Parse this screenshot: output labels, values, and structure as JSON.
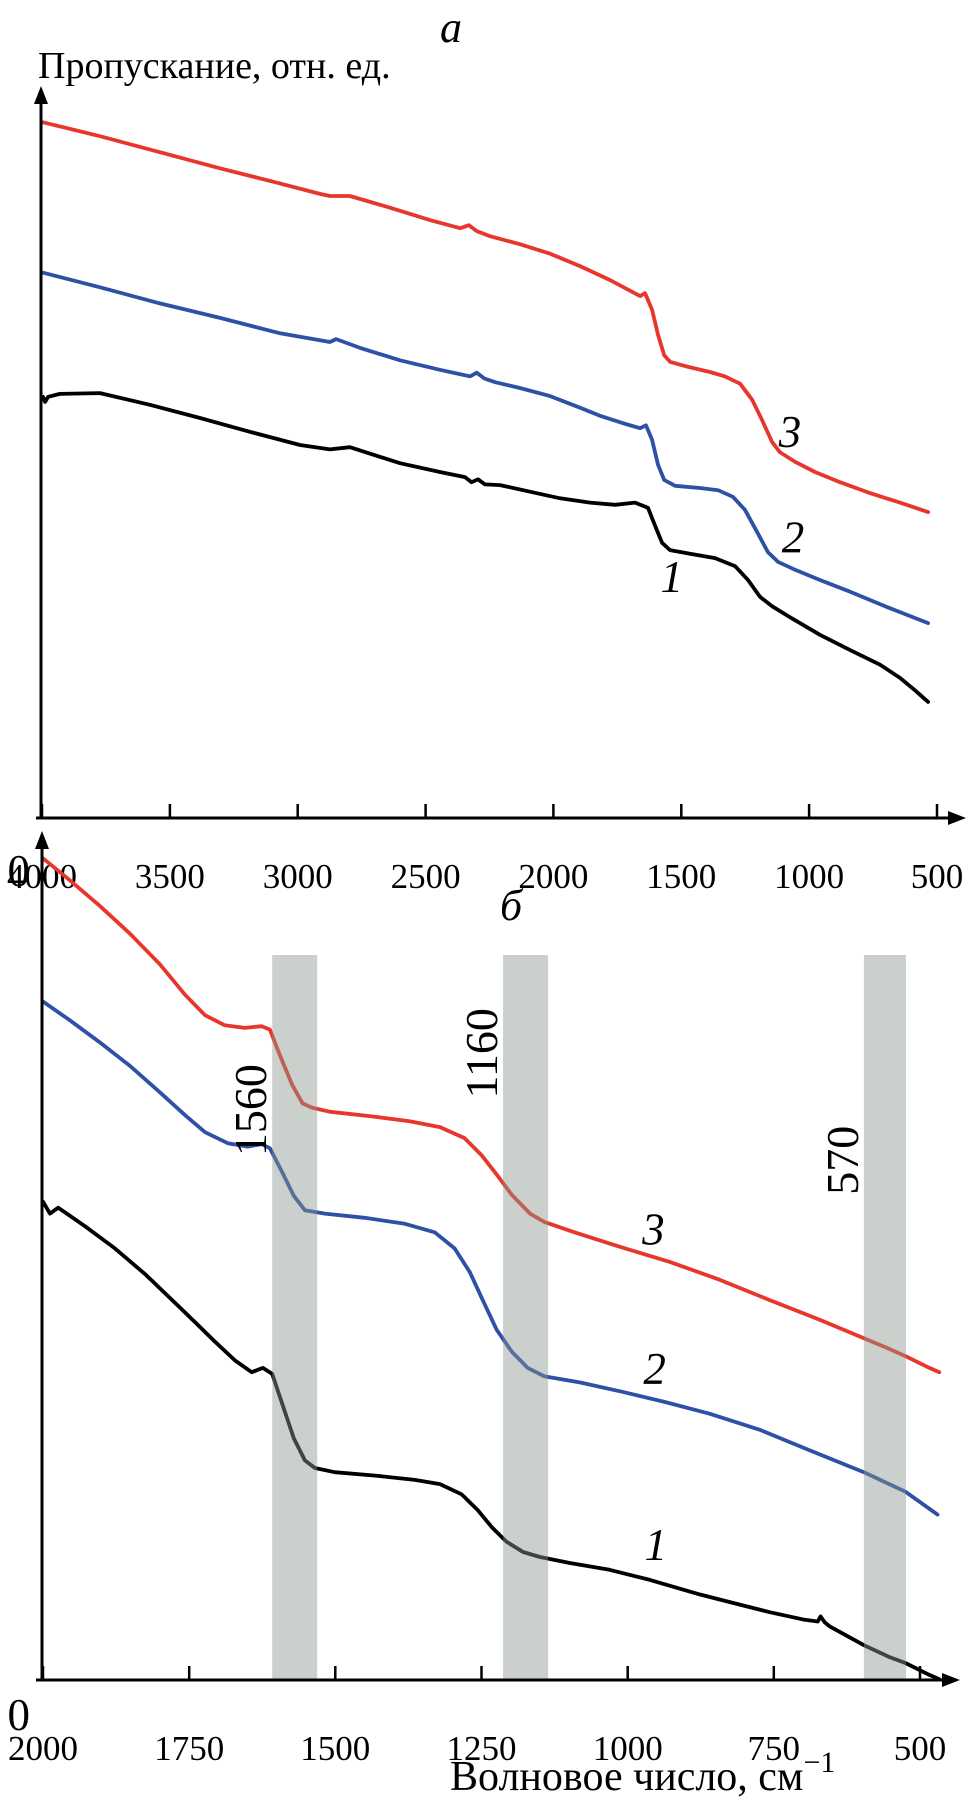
{
  "figure": {
    "panel_a_label": "a",
    "panel_b_label": "б",
    "y_axis_title": "Пропускание, отн. ед.",
    "x_axis_title": "Волновое число, см",
    "x_axis_title_superscript": "−1",
    "colors": {
      "curve1": "#000000",
      "curve2": "#2d51a4",
      "curve3": "#e7372c",
      "band": "#8c968e",
      "band_opacity": 0.45,
      "axis": "#000000"
    }
  },
  "chart_data": [
    {
      "panel": "a",
      "type": "line",
      "title": "a",
      "xlabel": "Волновое число, см⁻¹",
      "ylabel": "Пропускание, отн. ед.",
      "x_axis_reversed": true,
      "x_ticks": [
        4000,
        3500,
        3000,
        2500,
        2000,
        1500,
        1000,
        500
      ],
      "y_origin_label": "0",
      "grid": false,
      "legend": "curve numbers printed next to curves",
      "series": [
        {
          "name": "1",
          "color": "#000000",
          "label": {
            "text": "1",
            "x": 1537,
            "v": 0.33
          },
          "points": [
            [
              3996,
              0.577
            ],
            [
              3988,
              0.57
            ],
            [
              3976,
              0.577
            ],
            [
              3930,
              0.581
            ],
            [
              3773,
              0.582
            ],
            [
              3578,
              0.566
            ],
            [
              3382,
              0.548
            ],
            [
              3187,
              0.529
            ],
            [
              2991,
              0.511
            ],
            [
              2874,
              0.505
            ],
            [
              2796,
              0.508
            ],
            [
              2600,
              0.486
            ],
            [
              2444,
              0.474
            ],
            [
              2346,
              0.467
            ],
            [
              2320,
              0.46
            ],
            [
              2295,
              0.464
            ],
            [
              2268,
              0.457
            ],
            [
              2209,
              0.456
            ],
            [
              2092,
              0.447
            ],
            [
              1974,
              0.438
            ],
            [
              1857,
              0.432
            ],
            [
              1759,
              0.429
            ],
            [
              1681,
              0.432
            ],
            [
              1630,
              0.425
            ],
            [
              1603,
              0.401
            ],
            [
              1575,
              0.377
            ],
            [
              1544,
              0.367
            ],
            [
              1466,
              0.362
            ],
            [
              1368,
              0.356
            ],
            [
              1290,
              0.345
            ],
            [
              1239,
              0.326
            ],
            [
              1192,
              0.303
            ],
            [
              1145,
              0.29
            ],
            [
              1075,
              0.275
            ],
            [
              958,
              0.251
            ],
            [
              840,
              0.23
            ],
            [
              723,
              0.21
            ],
            [
              645,
              0.192
            ],
            [
              586,
              0.175
            ],
            [
              535,
              0.159
            ]
          ]
        },
        {
          "name": "2",
          "color": "#2d51a4",
          "label": {
            "text": "2",
            "x": 1063,
            "v": 0.384
          },
          "points": [
            [
              3996,
              0.747
            ],
            [
              3773,
              0.727
            ],
            [
              3539,
              0.705
            ],
            [
              3304,
              0.685
            ],
            [
              3069,
              0.664
            ],
            [
              2874,
              0.652
            ],
            [
              2850,
              0.656
            ],
            [
              2756,
              0.644
            ],
            [
              2600,
              0.627
            ],
            [
              2444,
              0.614
            ],
            [
              2326,
              0.605
            ],
            [
              2300,
              0.61
            ],
            [
              2270,
              0.602
            ],
            [
              2228,
              0.597
            ],
            [
              2131,
              0.589
            ],
            [
              2013,
              0.578
            ],
            [
              1896,
              0.562
            ],
            [
              1818,
              0.551
            ],
            [
              1720,
              0.54
            ],
            [
              1661,
              0.534
            ],
            [
              1638,
              0.538
            ],
            [
              1614,
              0.518
            ],
            [
              1591,
              0.484
            ],
            [
              1567,
              0.463
            ],
            [
              1524,
              0.455
            ],
            [
              1427,
              0.452
            ],
            [
              1356,
              0.449
            ],
            [
              1298,
              0.44
            ],
            [
              1251,
              0.422
            ],
            [
              1204,
              0.392
            ],
            [
              1161,
              0.364
            ],
            [
              1122,
              0.351
            ],
            [
              1055,
              0.34
            ],
            [
              958,
              0.326
            ],
            [
              840,
              0.31
            ],
            [
              703,
              0.29
            ],
            [
              586,
              0.274
            ],
            [
              535,
              0.267
            ]
          ]
        },
        {
          "name": "3",
          "color": "#e7372c",
          "label": {
            "text": "3",
            "x": 1075,
            "v": 0.529
          },
          "points": [
            [
              3996,
              0.953
            ],
            [
              3773,
              0.934
            ],
            [
              3539,
              0.912
            ],
            [
              3304,
              0.89
            ],
            [
              3089,
              0.871
            ],
            [
              2913,
              0.855
            ],
            [
              2874,
              0.852
            ],
            [
              2796,
              0.852
            ],
            [
              2639,
              0.836
            ],
            [
              2483,
              0.819
            ],
            [
              2365,
              0.808
            ],
            [
              2330,
              0.812
            ],
            [
              2300,
              0.804
            ],
            [
              2248,
              0.797
            ],
            [
              2131,
              0.786
            ],
            [
              2013,
              0.773
            ],
            [
              1896,
              0.756
            ],
            [
              1779,
              0.737
            ],
            [
              1693,
              0.721
            ],
            [
              1661,
              0.715
            ],
            [
              1642,
              0.719
            ],
            [
              1614,
              0.696
            ],
            [
              1591,
              0.662
            ],
            [
              1567,
              0.634
            ],
            [
              1544,
              0.625
            ],
            [
              1485,
              0.619
            ],
            [
              1388,
              0.611
            ],
            [
              1329,
              0.605
            ],
            [
              1270,
              0.595
            ],
            [
              1223,
              0.573
            ],
            [
              1184,
              0.545
            ],
            [
              1145,
              0.515
            ],
            [
              1114,
              0.501
            ],
            [
              1055,
              0.488
            ],
            [
              977,
              0.474
            ],
            [
              879,
              0.46
            ],
            [
              762,
              0.445
            ],
            [
              645,
              0.432
            ],
            [
              535,
              0.419
            ]
          ]
        }
      ]
    },
    {
      "panel": "б",
      "type": "line",
      "title": "б",
      "xlabel": "Волновое число, см⁻¹",
      "ylabel": "Пропускание, отн. ед.",
      "x_axis_reversed": true,
      "x_ticks": [
        2000,
        1750,
        1500,
        1250,
        1000,
        750,
        500
      ],
      "y_origin_label": "0",
      "grid": false,
      "bands": [
        {
          "label": "1560",
          "from": 1608,
          "to": 1531,
          "label_v": 0.672
        },
        {
          "label": "1160",
          "from": 1213,
          "to": 1136,
          "label_v": 0.739
        },
        {
          "label": "570",
          "from": 596,
          "to": 524,
          "label_v": 0.613
        }
      ],
      "series": [
        {
          "name": "1",
          "color": "#000000",
          "label": {
            "text": "1",
            "x": 952,
            "v": 0.159
          },
          "points": [
            [
              2000,
              0.564
            ],
            [
              1988,
              0.55
            ],
            [
              1974,
              0.557
            ],
            [
              1928,
              0.535
            ],
            [
              1877,
              0.509
            ],
            [
              1826,
              0.479
            ],
            [
              1779,
              0.448
            ],
            [
              1740,
              0.422
            ],
            [
              1706,
              0.399
            ],
            [
              1672,
              0.377
            ],
            [
              1643,
              0.363
            ],
            [
              1624,
              0.368
            ],
            [
              1608,
              0.361
            ],
            [
              1590,
              0.324
            ],
            [
              1571,
              0.285
            ],
            [
              1552,
              0.259
            ],
            [
              1535,
              0.25
            ],
            [
              1501,
              0.245
            ],
            [
              1432,
              0.241
            ],
            [
              1364,
              0.236
            ],
            [
              1321,
              0.231
            ],
            [
              1284,
              0.219
            ],
            [
              1256,
              0.2
            ],
            [
              1232,
              0.18
            ],
            [
              1207,
              0.163
            ],
            [
              1179,
              0.151
            ],
            [
              1150,
              0.145
            ],
            [
              1099,
              0.138
            ],
            [
              1031,
              0.13
            ],
            [
              962,
              0.118
            ],
            [
              877,
              0.101
            ],
            [
              826,
              0.092
            ],
            [
              757,
              0.08
            ],
            [
              697,
              0.071
            ],
            [
              675,
              0.069
            ],
            [
              670,
              0.075
            ],
            [
              663,
              0.068
            ],
            [
              654,
              0.063
            ],
            [
              596,
              0.041
            ],
            [
              552,
              0.027
            ],
            [
              525,
              0.02
            ],
            [
              484,
              0.006
            ],
            [
              467,
              0.001
            ]
          ]
        },
        {
          "name": "2",
          "color": "#2d51a4",
          "label": {
            "text": "2",
            "x": 954,
            "v": 0.367
          },
          "points": [
            [
              2000,
              0.8
            ],
            [
              1954,
              0.778
            ],
            [
              1903,
              0.752
            ],
            [
              1851,
              0.724
            ],
            [
              1800,
              0.693
            ],
            [
              1757,
              0.666
            ],
            [
              1723,
              0.646
            ],
            [
              1684,
              0.633
            ],
            [
              1650,
              0.629
            ],
            [
              1626,
              0.632
            ],
            [
              1612,
              0.627
            ],
            [
              1591,
              0.599
            ],
            [
              1571,
              0.571
            ],
            [
              1552,
              0.554
            ],
            [
              1518,
              0.55
            ],
            [
              1450,
              0.545
            ],
            [
              1381,
              0.538
            ],
            [
              1330,
              0.528
            ],
            [
              1296,
              0.509
            ],
            [
              1270,
              0.481
            ],
            [
              1248,
              0.448
            ],
            [
              1224,
              0.413
            ],
            [
              1198,
              0.387
            ],
            [
              1171,
              0.368
            ],
            [
              1142,
              0.358
            ],
            [
              1082,
              0.351
            ],
            [
              1010,
              0.34
            ],
            [
              937,
              0.328
            ],
            [
              860,
              0.314
            ],
            [
              774,
              0.295
            ],
            [
              689,
              0.271
            ],
            [
              596,
              0.245
            ],
            [
              525,
              0.222
            ],
            [
              470,
              0.195
            ]
          ]
        },
        {
          "name": "3",
          "color": "#e7372c",
          "label": {
            "text": "3",
            "x": 956,
            "v": 0.531
          },
          "points": [
            [
              2000,
              0.969
            ],
            [
              1954,
              0.943
            ],
            [
              1903,
              0.913
            ],
            [
              1851,
              0.88
            ],
            [
              1800,
              0.844
            ],
            [
              1757,
              0.808
            ],
            [
              1723,
              0.784
            ],
            [
              1689,
              0.772
            ],
            [
              1655,
              0.769
            ],
            [
              1626,
              0.771
            ],
            [
              1612,
              0.767
            ],
            [
              1595,
              0.737
            ],
            [
              1574,
              0.702
            ],
            [
              1556,
              0.68
            ],
            [
              1540,
              0.675
            ],
            [
              1509,
              0.67
            ],
            [
              1441,
              0.665
            ],
            [
              1373,
              0.659
            ],
            [
              1321,
              0.652
            ],
            [
              1279,
              0.639
            ],
            [
              1250,
              0.619
            ],
            [
              1224,
              0.596
            ],
            [
              1198,
              0.572
            ],
            [
              1167,
              0.55
            ],
            [
              1142,
              0.54
            ],
            [
              1091,
              0.528
            ],
            [
              1014,
              0.511
            ],
            [
              928,
              0.493
            ],
            [
              843,
              0.472
            ],
            [
              757,
              0.448
            ],
            [
              672,
              0.425
            ],
            [
              596,
              0.403
            ],
            [
              561,
              0.393
            ],
            [
              525,
              0.382
            ],
            [
              484,
              0.368
            ],
            [
              467,
              0.363
            ]
          ]
        }
      ]
    }
  ]
}
